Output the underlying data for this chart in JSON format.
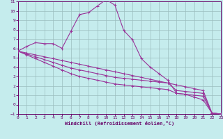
{
  "xlabel": "Windchill (Refroidissement éolien,°C)",
  "bg_color": "#c5eced",
  "grid_color": "#9bbebe",
  "line_color": "#993399",
  "spine_color": "#660066",
  "tick_color": "#660066",
  "xlim": [
    0,
    23
  ],
  "ylim": [
    -1,
    11
  ],
  "xticks": [
    0,
    1,
    2,
    3,
    4,
    5,
    6,
    7,
    8,
    9,
    10,
    11,
    12,
    13,
    14,
    15,
    16,
    17,
    18,
    19,
    20,
    21,
    22,
    23
  ],
  "yticks": [
    -1,
    0,
    1,
    2,
    3,
    4,
    5,
    6,
    7,
    8,
    9,
    10,
    11
  ],
  "series": [
    [
      5.7,
      6.2,
      6.6,
      6.5,
      6.5,
      6.0,
      7.8,
      9.6,
      9.8,
      10.5,
      11.2,
      10.6,
      7.9,
      6.9,
      4.9,
      4.0,
      3.3,
      2.6,
      1.2,
      1.1,
      0.8,
      0.5,
      -0.9,
      -1.0
    ],
    [
      5.7,
      5.5,
      5.3,
      5.1,
      4.9,
      4.7,
      4.5,
      4.3,
      4.1,
      3.9,
      3.7,
      3.5,
      3.3,
      3.1,
      2.9,
      2.7,
      2.5,
      2.3,
      2.1,
      1.9,
      1.7,
      1.5,
      -0.9,
      -1.0
    ],
    [
      5.7,
      5.4,
      5.1,
      4.8,
      4.5,
      4.2,
      3.9,
      3.7,
      3.5,
      3.3,
      3.1,
      2.9,
      2.8,
      2.7,
      2.6,
      2.5,
      2.4,
      2.3,
      1.5,
      1.4,
      1.3,
      1.2,
      -0.9,
      -1.0
    ],
    [
      5.7,
      5.3,
      4.9,
      4.5,
      4.1,
      3.7,
      3.3,
      3.0,
      2.8,
      2.6,
      2.4,
      2.2,
      2.1,
      2.0,
      1.9,
      1.8,
      1.7,
      1.6,
      1.2,
      1.1,
      1.0,
      0.9,
      -0.9,
      -1.0
    ]
  ]
}
